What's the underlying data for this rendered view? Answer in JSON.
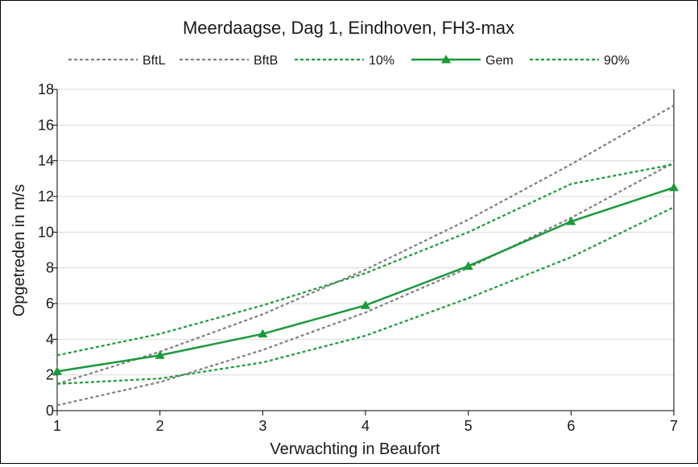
{
  "chart_data": {
    "type": "line",
    "title": "Meerdaagse, Dag 1, Eindhoven, FH3-max",
    "xlabel": "Verwachting in Beaufort",
    "ylabel": "Opgetreden in m/s",
    "x": [
      1,
      2,
      3,
      4,
      5,
      6,
      7
    ],
    "xlim": [
      1,
      7
    ],
    "ylim": [
      0,
      18
    ],
    "yticks": [
      0,
      2,
      4,
      6,
      8,
      10,
      12,
      14,
      16,
      18
    ],
    "grid": "horizontal",
    "legend_position": "top",
    "series": [
      {
        "name": "BftL",
        "style": "dashed",
        "color": "#808080",
        "marker": "none",
        "values": [
          0.3,
          1.6,
          3.4,
          5.5,
          8.0,
          10.8,
          13.9
        ]
      },
      {
        "name": "BftB",
        "style": "dashed",
        "color": "#808080",
        "marker": "none",
        "values": [
          1.5,
          3.3,
          5.4,
          7.9,
          10.7,
          13.8,
          17.1
        ]
      },
      {
        "name": "10%",
        "style": "dashed",
        "color": "#1a9a3a",
        "marker": "none",
        "values": [
          1.5,
          1.8,
          2.7,
          4.2,
          6.3,
          8.6,
          11.4
        ]
      },
      {
        "name": "Gem",
        "style": "solid",
        "color": "#1a9a3a",
        "marker": "triangle",
        "values": [
          2.2,
          3.1,
          4.3,
          5.9,
          8.1,
          10.6,
          12.5
        ]
      },
      {
        "name": "90%",
        "style": "dashed",
        "color": "#1a9a3a",
        "marker": "none",
        "values": [
          3.1,
          4.3,
          5.9,
          7.7,
          10.0,
          12.7,
          13.8
        ]
      }
    ]
  }
}
